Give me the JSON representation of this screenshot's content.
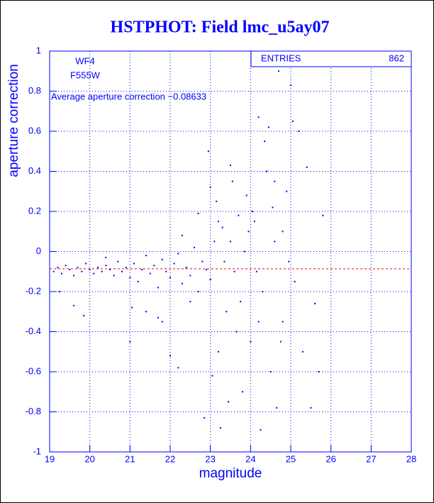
{
  "chart_data": {
    "type": "scatter",
    "title": "HSTPHOT: Field lmc_u5ay07",
    "x_label": "magnitude",
    "y_label": "aperture correction",
    "annotations": [
      "WF4",
      "F555W"
    ],
    "stats": {
      "label": "ENTRIES",
      "value": 862
    },
    "reference_line": {
      "value": -0.08633,
      "label": "Average aperture correction −0.08633",
      "color": "#ff0000"
    },
    "color": "#0000ff",
    "grid": true,
    "xlim": [
      19,
      28
    ],
    "xticks": [
      19,
      20,
      21,
      22,
      23,
      24,
      25,
      26,
      27,
      28
    ],
    "ylim": [
      -1,
      1
    ],
    "yticks": [
      -1,
      -0.8,
      -0.6,
      -0.4,
      -0.2,
      0,
      0.2,
      0.4,
      0.6,
      0.8,
      1
    ],
    "x": [
      19.1,
      19.2,
      19.3,
      19.4,
      19.5,
      19.6,
      19.7,
      19.8,
      19.9,
      20.0,
      20.1,
      20.2,
      20.3,
      20.4,
      20.5,
      20.6,
      20.7,
      20.8,
      20.9,
      21.0,
      19.6,
      19.85,
      19.25,
      20.4,
      21.1,
      21.2,
      21.3,
      21.4,
      21.5,
      21.6,
      21.7,
      21.8,
      21.9,
      22.0,
      22.1,
      22.2,
      22.3,
      22.4,
      22.5,
      22.6,
      22.7,
      22.8,
      22.9,
      23.0,
      21.0,
      21.05,
      21.4,
      21.8,
      22.0,
      22.2,
      22.5,
      22.7,
      22.85,
      22.95,
      22.3,
      21.7,
      23.0,
      23.1,
      23.2,
      23.3,
      23.4,
      23.5,
      23.6,
      23.7,
      23.8,
      23.9,
      24.0,
      24.1,
      24.2,
      24.3,
      24.4,
      24.5,
      24.6,
      24.7,
      24.8,
      24.9,
      25.0,
      25.1,
      25.2,
      25.3,
      25.4,
      25.5,
      25.6,
      25.8,
      25.7,
      23.15,
      23.35,
      23.55,
      23.75,
      23.95,
      24.15,
      24.35,
      24.55,
      24.75,
      24.95,
      23.05,
      23.25,
      23.45,
      24.25,
      23.65,
      24.45,
      24.05,
      23.85,
      24.65,
      23.5,
      24.2,
      23.2,
      24.8,
      25.05,
      24.6
    ],
    "values": [
      -0.1,
      -0.08,
      -0.11,
      -0.07,
      -0.09,
      -0.12,
      -0.08,
      -0.1,
      -0.06,
      -0.09,
      -0.11,
      -0.08,
      -0.1,
      -0.07,
      -0.09,
      -0.12,
      -0.05,
      -0.1,
      -0.08,
      -0.13,
      -0.27,
      -0.32,
      -0.2,
      -0.03,
      -0.06,
      -0.15,
      -0.09,
      -0.02,
      -0.11,
      -0.07,
      -0.18,
      -0.04,
      -0.1,
      -0.13,
      -0.06,
      -0.01,
      -0.16,
      -0.08,
      -0.12,
      0.02,
      -0.2,
      -0.05,
      -0.09,
      -0.14,
      -0.45,
      -0.28,
      -0.3,
      -0.35,
      -0.52,
      -0.58,
      -0.25,
      0.19,
      -0.83,
      0.5,
      0.08,
      -0.33,
      0.32,
      0.05,
      -0.5,
      0.12,
      -0.3,
      0.43,
      -0.1,
      0.18,
      -0.7,
      0.28,
      -0.45,
      0.15,
      0.67,
      -0.2,
      0.4,
      -0.6,
      0.05,
      0.9,
      -0.35,
      0.3,
      0.83,
      -0.15,
      0.6,
      -0.5,
      0.42,
      -0.78,
      -0.26,
      0.18,
      -0.6,
      0.25,
      -0.05,
      0.35,
      -0.25,
      0.1,
      -0.1,
      0.55,
      0.22,
      -0.45,
      -0.05,
      -0.62,
      -0.88,
      -0.75,
      -0.89,
      -0.4,
      0.62,
      0.2,
      0.0,
      -0.78,
      0.05,
      -0.35,
      0.15,
      0.1,
      0.65,
      0.35
    ]
  }
}
